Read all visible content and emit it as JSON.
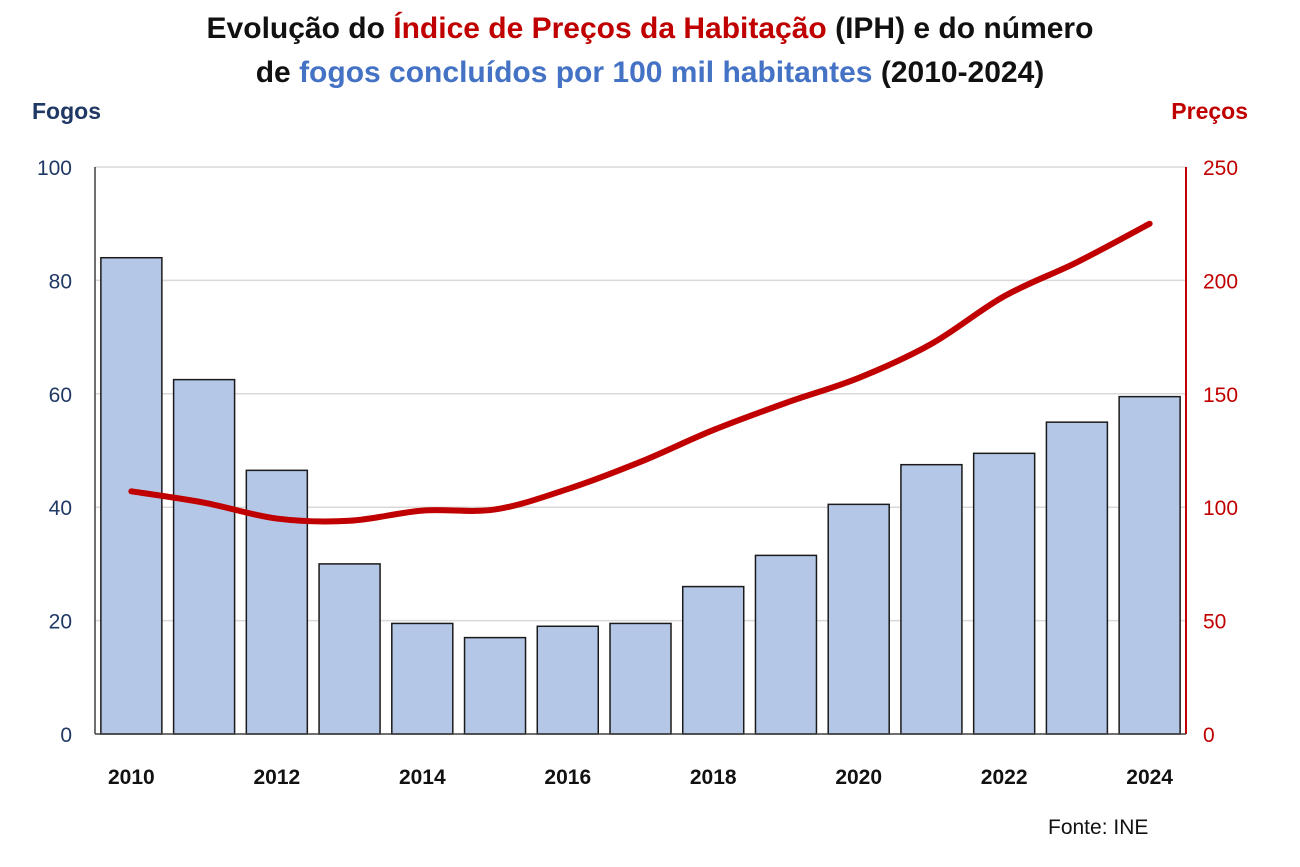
{
  "title": {
    "line1_a": "Evolução do ",
    "line1_b": "Índice de Preços da Habitação",
    "line1_c": " (IPH) e do número",
    "line2_a": "de ",
    "line2_b": "fogos concluídos por 100 mil habitantes",
    "line2_c": " (2010-2024)"
  },
  "source": "Fonte: INE",
  "colors": {
    "bar_fill": "#b4c7e7",
    "bar_stroke": "#1a1a1a",
    "price_line": "#c00000",
    "left_axis_text": "#1f3864",
    "right_axis_text": "#c00000",
    "title_blue": "#4472c4",
    "title_red": "#c00000",
    "grid": "#d9d9d9"
  },
  "chart_data": {
    "type": "bar",
    "categories": [
      "2010",
      "2011",
      "2012",
      "2013",
      "2014",
      "2015",
      "2016",
      "2017",
      "2018",
      "2019",
      "2020",
      "2021",
      "2022",
      "2023",
      "2024"
    ],
    "x_tick_labels": [
      "2010",
      "",
      "2012",
      "",
      "2014",
      "",
      "2016",
      "",
      "2018",
      "",
      "2020",
      "",
      "2022",
      "",
      "2024"
    ],
    "series": [
      {
        "name": "Fogos",
        "type": "bar",
        "axis": "left",
        "values": [
          84,
          62.5,
          46.5,
          30,
          19.5,
          17,
          19,
          19.5,
          26,
          31.5,
          40.5,
          47.5,
          49.5,
          55,
          59.5
        ]
      },
      {
        "name": "Preços",
        "type": "line",
        "axis": "right",
        "values": [
          107,
          102,
          95,
          94,
          98.5,
          99,
          108,
          120,
          134,
          146,
          157,
          172,
          193,
          208,
          225
        ]
      }
    ],
    "y_left": {
      "label": "Fogos",
      "min": 0,
      "max": 100,
      "ticks": [
        0,
        20,
        40,
        60,
        80,
        100
      ]
    },
    "y_right": {
      "label": "Preços",
      "min": 0,
      "max": 250,
      "ticks": [
        0,
        50,
        100,
        150,
        200,
        250
      ]
    },
    "grid": true
  }
}
